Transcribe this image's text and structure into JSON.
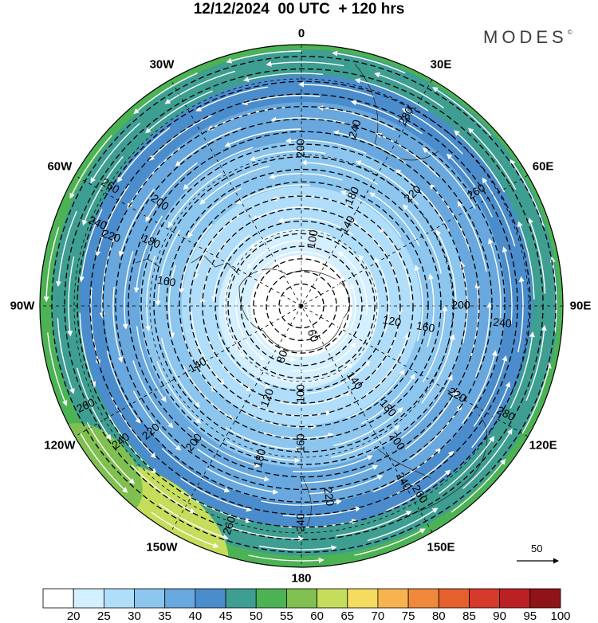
{
  "title": "12/12/2024  00 UTC  + 120 hrs",
  "brand": "MODES",
  "brand_mark": "©",
  "longitude_labels": [
    {
      "text": "0",
      "angle": 0
    },
    {
      "text": "30E",
      "angle": 30
    },
    {
      "text": "60E",
      "angle": 60
    },
    {
      "text": "90E",
      "angle": 90
    },
    {
      "text": "120E",
      "angle": 120
    },
    {
      "text": "150E",
      "angle": 150
    },
    {
      "text": "180",
      "angle": 180
    },
    {
      "text": "150W",
      "angle": 210
    },
    {
      "text": "120W",
      "angle": 240
    },
    {
      "text": "90W",
      "angle": 270
    },
    {
      "text": "60W",
      "angle": 300
    },
    {
      "text": "30W",
      "angle": 330
    }
  ],
  "reference_vector": {
    "label": "50"
  },
  "colorbar": {
    "labels": [
      "20",
      "25",
      "30",
      "35",
      "40",
      "45",
      "50",
      "55",
      "60",
      "65",
      "70",
      "75",
      "80",
      "85",
      "90",
      "95",
      "100"
    ],
    "colors": [
      "#ffffff",
      "#d4efff",
      "#b0defa",
      "#8cc6ef",
      "#68a8de",
      "#4a8ccc",
      "#3e9e92",
      "#4cb355",
      "#7fc050",
      "#c4dd5a",
      "#f4dc60",
      "#f6b34f",
      "#f0893c",
      "#e6602e",
      "#d63a2b",
      "#bb2124",
      "#8f1418"
    ]
  },
  "contour_labels": [
    {
      "text": "60",
      "angle": 160,
      "r": 40
    },
    {
      "text": "80",
      "angle": 200,
      "r": 68
    },
    {
      "text": "100",
      "angle": 10,
      "r": 85
    },
    {
      "text": "100",
      "angle": 180,
      "r": 110
    },
    {
      "text": "120",
      "angle": 100,
      "r": 115
    },
    {
      "text": "120",
      "angle": 200,
      "r": 123
    },
    {
      "text": "140",
      "angle": 30,
      "r": 117
    },
    {
      "text": "140",
      "angle": 145,
      "r": 115
    },
    {
      "text": "140",
      "angle": 240,
      "r": 150
    },
    {
      "text": "160",
      "angle": 100,
      "r": 158
    },
    {
      "text": "160",
      "angle": 180,
      "r": 172
    },
    {
      "text": "160",
      "angle": 280,
      "r": 172
    },
    {
      "text": "180",
      "angle": 140,
      "r": 168
    },
    {
      "text": "180",
      "angle": 195,
      "r": 198
    },
    {
      "text": "180",
      "angle": 293,
      "r": 205
    },
    {
      "text": "180",
      "angle": 25,
      "r": 152
    },
    {
      "text": "200",
      "angle": 0,
      "r": 198
    },
    {
      "text": "200",
      "angle": 90,
      "r": 200
    },
    {
      "text": "200",
      "angle": 145,
      "r": 208
    },
    {
      "text": "200",
      "angle": 218,
      "r": 218
    },
    {
      "text": "200",
      "angle": 306,
      "r": 220
    },
    {
      "text": "220",
      "angle": 45,
      "r": 198
    },
    {
      "text": "220",
      "angle": 120,
      "r": 225
    },
    {
      "text": "220",
      "angle": 172,
      "r": 242
    },
    {
      "text": "220",
      "angle": 230,
      "r": 246
    },
    {
      "text": "220",
      "angle": 290,
      "r": 254
    },
    {
      "text": "240",
      "angle": 17,
      "r": 232
    },
    {
      "text": "240",
      "angle": 95,
      "r": 253
    },
    {
      "text": "240",
      "angle": 150,
      "r": 255
    },
    {
      "text": "240",
      "angle": 180,
      "r": 272
    },
    {
      "text": "240",
      "angle": 233,
      "r": 283
    },
    {
      "text": "240",
      "angle": 292,
      "r": 276
    },
    {
      "text": "260",
      "angle": 57,
      "r": 262
    },
    {
      "text": "260",
      "angle": 148,
      "r": 279
    },
    {
      "text": "260",
      "angle": 198,
      "r": 290
    },
    {
      "text": "260",
      "angle": 245,
      "r": 298
    },
    {
      "text": "260",
      "angle": 302,
      "r": 283
    },
    {
      "text": "280",
      "angle": 29,
      "r": 272
    },
    {
      "text": "280",
      "angle": 118,
      "r": 290
    }
  ]
}
